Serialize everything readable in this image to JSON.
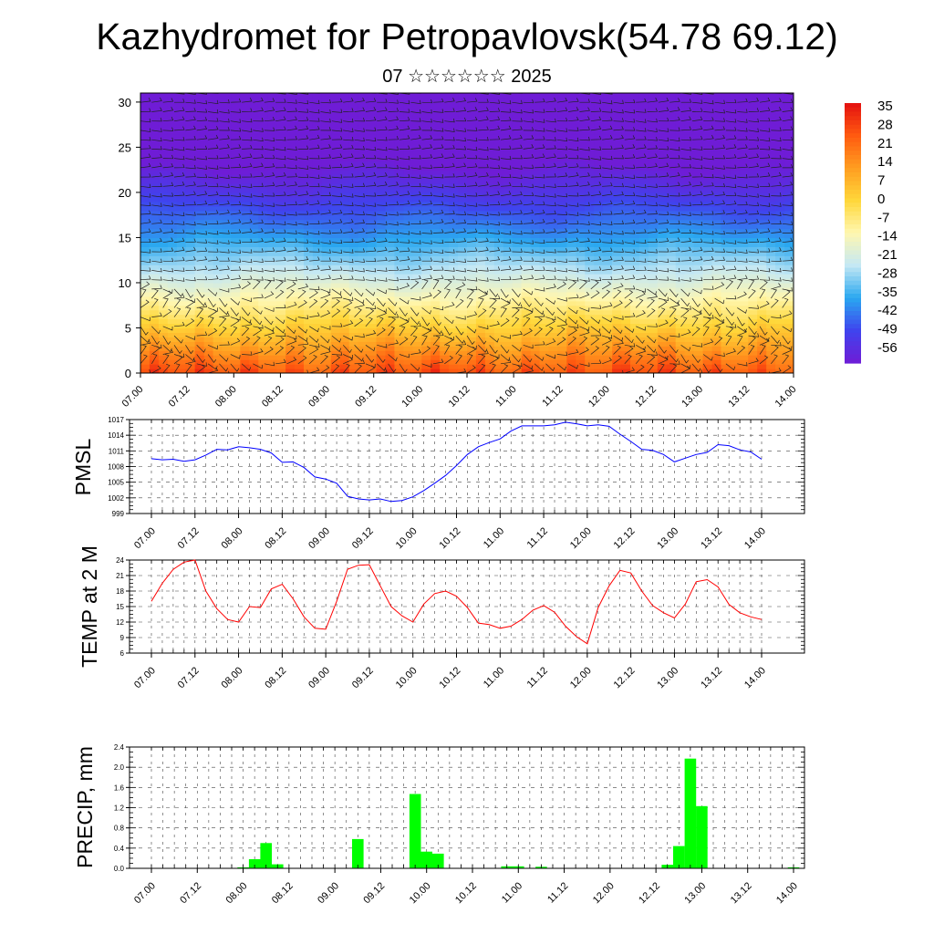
{
  "header": {
    "title": "Kazhydromet for Petropavlovsk(54.78 69.12)",
    "subtitle": "07 ☆☆☆☆☆☆ 2025"
  },
  "time_labels": [
    "07.00",
    "07.12",
    "08.00",
    "08.12",
    "09.00",
    "09.12",
    "10.00",
    "10.12",
    "11.00",
    "11.12",
    "12.00",
    "12.12",
    "13.00",
    "13.12",
    "14.00"
  ],
  "chart_data": [
    {
      "type": "heatmap",
      "name": "cross-section",
      "x_ticks": [
        "07.00",
        "07.12",
        "08.00",
        "08.12",
        "09.00",
        "09.12",
        "10.00",
        "10.12",
        "11.00",
        "11.12",
        "12.00",
        "12.12",
        "13.00",
        "13.12",
        "14.00"
      ],
      "y_ticks": [
        "0",
        "5",
        "10",
        "15",
        "20",
        "25",
        "30"
      ],
      "ylim": [
        0,
        31
      ],
      "colorbar_labels": [
        "35",
        "28",
        "21",
        "14",
        "7",
        "0",
        "-7",
        "-14",
        "-21",
        "-28",
        "-35",
        "-42",
        "-49",
        "-56"
      ],
      "colorbar_range": [
        -60,
        38
      ],
      "colors": [
        "#6f1cd6",
        "#3f44ee",
        "#2aa8f0",
        "#c4e8f4",
        "#fff7b0",
        "#ffd73a",
        "#ff9d20",
        "#ff5a10",
        "#e41010"
      ],
      "overlay": "wind barbs"
    },
    {
      "type": "line",
      "name": "pressure",
      "ylabel": "PMSL",
      "y_ticks": [
        "1017",
        "1014",
        "1011",
        "1008",
        "1005",
        "1002",
        "999"
      ],
      "ylim": [
        999,
        1017
      ],
      "color": "#0000ff",
      "x": [
        0,
        1,
        2,
        3,
        4,
        5,
        6,
        7,
        8,
        9,
        10,
        11,
        12,
        13,
        14,
        15,
        16,
        17,
        18,
        19,
        20,
        21,
        22,
        23,
        24,
        25,
        26,
        27,
        28,
        29,
        30,
        31,
        32,
        33,
        34,
        35,
        36,
        37,
        38,
        39,
        40,
        41,
        42,
        43,
        44,
        45,
        46,
        47,
        48,
        49,
        50,
        51,
        52,
        53,
        54,
        55,
        56
      ],
      "values": [
        1009.5,
        1009.3,
        1009.4,
        1009.0,
        1009.3,
        1010.2,
        1011.3,
        1011.2,
        1011.8,
        1011.6,
        1011.3,
        1010.6,
        1008.8,
        1008.9,
        1007.8,
        1006.0,
        1005.6,
        1004.8,
        1002.3,
        1001.8,
        1001.6,
        1001.8,
        1001.3,
        1001.5,
        1002.2,
        1003.4,
        1004.8,
        1006.3,
        1008.2,
        1010.3,
        1011.8,
        1012.6,
        1013.3,
        1014.8,
        1015.8,
        1015.8,
        1015.8,
        1016.0,
        1016.5,
        1016.2,
        1015.8,
        1016.0,
        1015.7,
        1014.2,
        1012.8,
        1011.3,
        1011.1,
        1010.3,
        1008.9,
        1009.6,
        1010.3,
        1010.7,
        1012.2,
        1012.0,
        1011.2,
        1010.8,
        1009.4
      ]
    },
    {
      "type": "line",
      "name": "temperature",
      "ylabel": "TEMP at 2 M",
      "y_ticks": [
        "24",
        "21",
        "18",
        "15",
        "12",
        "9",
        "6"
      ],
      "ylim": [
        6,
        24
      ],
      "color": "#ff0000",
      "x": [
        0,
        1,
        2,
        3,
        4,
        5,
        6,
        7,
        8,
        9,
        10,
        11,
        12,
        13,
        14,
        15,
        16,
        17,
        18,
        19,
        20,
        21,
        22,
        23,
        24,
        25,
        26,
        27,
        28,
        29,
        30,
        31,
        32,
        33,
        34,
        35,
        36,
        37,
        38,
        39,
        40,
        41,
        42,
        43,
        44,
        45,
        46,
        47,
        48,
        49,
        50,
        51,
        52,
        53,
        54,
        55,
        56
      ],
      "values": [
        16.0,
        19.5,
        22.2,
        23.6,
        24.0,
        18.0,
        14.6,
        12.5,
        12.0,
        15.0,
        14.8,
        18.4,
        19.3,
        16.5,
        13.0,
        10.8,
        10.6,
        16.0,
        22.2,
        23.0,
        23.1,
        19.0,
        15.0,
        13.2,
        12.0,
        15.5,
        17.5,
        18.0,
        17.0,
        14.8,
        11.8,
        11.5,
        10.8,
        11.2,
        12.5,
        14.3,
        15.2,
        13.9,
        11.2,
        9.2,
        7.8,
        14.8,
        19.0,
        22.0,
        21.5,
        18.0,
        15.2,
        13.8,
        12.8,
        15.5,
        19.8,
        20.2,
        18.8,
        15.4,
        13.8,
        13.0,
        12.5
      ]
    },
    {
      "type": "bar",
      "name": "precipitation",
      "ylabel": "PRECIP, mm",
      "y_ticks": [
        "2.4",
        "2.0",
        "1.6",
        "1.2",
        "0.8",
        "0.4",
        "0.0"
      ],
      "ylim": [
        0,
        2.4
      ],
      "color": "#00ff00",
      "x": [
        8,
        9,
        10,
        11,
        18,
        23,
        24,
        25,
        31,
        32,
        34,
        45,
        46,
        47,
        48,
        56
      ],
      "values": [
        0.02,
        0.18,
        0.5,
        0.08,
        0.58,
        1.47,
        0.33,
        0.29,
        0.04,
        0.04,
        0.03,
        0.07,
        0.44,
        2.17,
        1.23,
        0.02
      ]
    }
  ]
}
